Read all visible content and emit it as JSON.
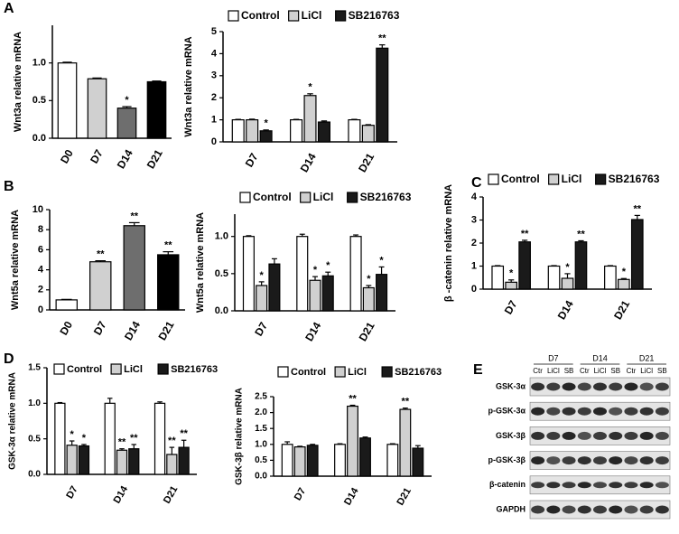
{
  "panels": [
    "A",
    "B",
    "C",
    "D",
    "E"
  ],
  "chart_data": [
    {
      "type": "bar",
      "y_label": "Wnt3a relative mRNA",
      "categories": [
        "D0",
        "D7",
        "D14",
        "D21"
      ],
      "values": [
        1.0,
        0.79,
        0.4,
        0.75
      ],
      "errors": [
        0.01,
        0.01,
        0.02,
        0.01
      ],
      "colors": [
        "#ffffff",
        "#d0d0d0",
        "#6e6e6e",
        "#000000"
      ],
      "annotations": [
        null,
        null,
        "*",
        null
      ],
      "ylim": [
        0,
        1.5
      ],
      "yticks": [
        {
          "value": 0,
          "label": "0.0"
        },
        {
          "value": 0.5,
          "label": "0.5"
        },
        {
          "value": 1,
          "label": "1.0"
        }
      ]
    },
    {
      "type": "bar",
      "y_label": "Wnt3a relative mRNA",
      "categories": [
        "D7",
        "D14",
        "D21"
      ],
      "series": [
        {
          "name": "Control",
          "color": "#ffffff",
          "values": [
            1,
            1,
            1
          ],
          "errors": [
            0.02,
            0.02,
            0.02
          ],
          "annotations": [
            null,
            null,
            null
          ]
        },
        {
          "name": "LiCl",
          "color": "#d0d0d0",
          "values": [
            1.0,
            2.1,
            0.75
          ],
          "errors": [
            0.03,
            0.08,
            0.03
          ],
          "annotations": [
            null,
            "*",
            null
          ]
        },
        {
          "name": "SB216763",
          "color": "#1a1a1a",
          "values": [
            0.5,
            0.9,
            4.25
          ],
          "errors": [
            0.04,
            0.05,
            0.15
          ],
          "annotations": [
            "*",
            null,
            "**"
          ]
        }
      ],
      "ylim": [
        0,
        5
      ],
      "yticks": [
        0,
        1,
        2,
        3,
        4,
        5
      ]
    },
    {
      "type": "bar",
      "y_label": "Wnt5a relative mRNA",
      "categories": [
        "D0",
        "D7",
        "D14",
        "D21"
      ],
      "values": [
        1.0,
        4.8,
        8.4,
        5.5
      ],
      "errors": [
        0.05,
        0.1,
        0.3,
        0.3
      ],
      "colors": [
        "#ffffff",
        "#d0d0d0",
        "#6e6e6e",
        "#000000"
      ],
      "annotations": [
        null,
        "**",
        "**",
        "**"
      ],
      "ylim": [
        0,
        10
      ],
      "yticks": [
        0,
        2,
        4,
        6,
        8,
        10
      ]
    },
    {
      "type": "bar",
      "y_label": "Wnt5a relative mRNA",
      "categories": [
        "D7",
        "D14",
        "D21"
      ],
      "series": [
        {
          "name": "Control",
          "color": "#ffffff",
          "values": [
            1,
            1,
            1
          ],
          "errors": [
            0.01,
            0.03,
            0.02
          ],
          "annotations": [
            null,
            null,
            null
          ]
        },
        {
          "name": "LiCl",
          "color": "#d0d0d0",
          "values": [
            0.34,
            0.41,
            0.31
          ],
          "errors": [
            0.05,
            0.05,
            0.03
          ],
          "annotations": [
            "*",
            "*",
            "*"
          ]
        },
        {
          "name": "SB216763",
          "color": "#1a1a1a",
          "values": [
            0.63,
            0.47,
            0.49
          ],
          "errors": [
            0.07,
            0.05,
            0.1
          ],
          "annotations": [
            null,
            "*",
            "*"
          ]
        }
      ],
      "ylim": [
        0,
        1.3
      ],
      "yticks": [
        {
          "value": 0,
          "label": "0.0"
        },
        {
          "value": 0.5,
          "label": "0.5"
        },
        {
          "value": 1,
          "label": "1.0"
        }
      ]
    },
    {
      "type": "bar",
      "y_label": "β -catenin relative mRNA",
      "categories": [
        "D7",
        "D14",
        "D21"
      ],
      "series": [
        {
          "name": "Control",
          "color": "#ffffff",
          "values": [
            1,
            1,
            1
          ],
          "errors": [
            0.02,
            0.02,
            0.02
          ],
          "annotations": [
            null,
            null,
            null
          ]
        },
        {
          "name": "LiCl",
          "color": "#d0d0d0",
          "values": [
            0.3,
            0.47,
            0.42
          ],
          "errors": [
            0.1,
            0.2,
            0.04
          ],
          "annotations": [
            "*",
            "*",
            "*"
          ]
        },
        {
          "name": "SB216763",
          "color": "#1a1a1a",
          "values": [
            2.05,
            2.05,
            3.02
          ],
          "errors": [
            0.07,
            0.05,
            0.18
          ],
          "annotations": [
            "**",
            "**",
            "**"
          ]
        }
      ],
      "ylim": [
        0,
        4
      ],
      "yticks": [
        0,
        1,
        2,
        3,
        4
      ]
    },
    {
      "type": "bar",
      "y_label": "GSK-3α relative mRNA",
      "categories": [
        "D7",
        "D14",
        "D21"
      ],
      "series": [
        {
          "name": "Control",
          "color": "#ffffff",
          "values": [
            1,
            1,
            1
          ],
          "errors": [
            0.01,
            0.07,
            0.02
          ],
          "annotations": [
            null,
            null,
            null
          ]
        },
        {
          "name": "LiCl",
          "color": "#d0d0d0",
          "values": [
            0.41,
            0.34,
            0.28
          ],
          "errors": [
            0.06,
            0.02,
            0.1
          ],
          "annotations": [
            "*",
            "**",
            "**"
          ]
        },
        {
          "name": "SB216763",
          "color": "#1a1a1a",
          "values": [
            0.4,
            0.36,
            0.38
          ],
          "errors": [
            0.02,
            0.06,
            0.1
          ],
          "annotations": [
            "*",
            "**",
            "**"
          ]
        }
      ],
      "ylim": [
        0,
        1.5
      ],
      "yticks": [
        {
          "value": 0,
          "label": "0.0"
        },
        {
          "value": 0.5,
          "label": "0.5"
        },
        {
          "value": 1,
          "label": "1.0"
        },
        {
          "value": 1.5,
          "label": "1.5"
        }
      ]
    },
    {
      "type": "bar",
      "y_label": "GSK-3β relative mRNA",
      "categories": [
        "D7",
        "D14",
        "D21"
      ],
      "series": [
        {
          "name": "Control",
          "color": "#ffffff",
          "values": [
            1,
            1,
            1
          ],
          "errors": [
            0.08,
            0.02,
            0.02
          ],
          "annotations": [
            null,
            null,
            null
          ]
        },
        {
          "name": "LiCl",
          "color": "#d0d0d0",
          "values": [
            0.92,
            2.2,
            2.1
          ],
          "errors": [
            0.02,
            0.03,
            0.04
          ],
          "annotations": [
            null,
            "**",
            "**"
          ]
        },
        {
          "name": "SB216763",
          "color": "#1a1a1a",
          "values": [
            0.97,
            1.2,
            0.88
          ],
          "errors": [
            0.03,
            0.03,
            0.08
          ],
          "annotations": [
            null,
            null,
            null
          ]
        }
      ],
      "ylim": [
        0,
        2.5
      ],
      "yticks": [
        {
          "value": 0,
          "label": "0.0"
        },
        {
          "value": 0.5,
          "label": "0.5"
        },
        {
          "value": 1,
          "label": "1.0"
        },
        {
          "value": 1.5,
          "label": "1.5"
        },
        {
          "value": 2,
          "label": "2.0"
        },
        {
          "value": 2.5,
          "label": "2.5"
        }
      ]
    }
  ],
  "blot": {
    "groups": [
      "D7",
      "D14",
      "D21"
    ],
    "lanes": [
      "Ctr",
      "LiCl",
      "SB"
    ],
    "rows": [
      "GSK-3α",
      "p-GSK-3α",
      "GSK-3β",
      "p-GSK-3β",
      "β-catenin",
      "GAPDH"
    ]
  }
}
